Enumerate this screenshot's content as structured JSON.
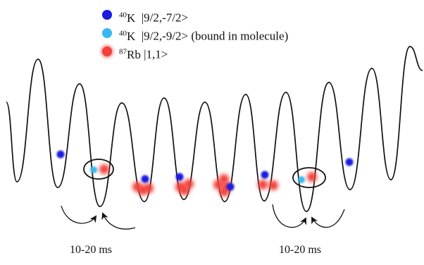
{
  "legend": {
    "items": [
      {
        "isotope": "40",
        "element": "K",
        "state": "|9/2,-7/2>",
        "note": "",
        "color": "#1a1ae0"
      },
      {
        "isotope": "40",
        "element": "K",
        "state": "|9/2,-9/2>",
        "note": "(bound in molecule)",
        "color": "#38b8ee"
      },
      {
        "isotope": "87",
        "element": "Rb",
        "state": "|1,1>",
        "note": "",
        "color": "#f2403a"
      }
    ]
  },
  "timing_labels": {
    "left": "10-20 ms",
    "right": "10-20 ms"
  },
  "colors": {
    "lattice": "#111111",
    "k_unbound": "#1a1ae0",
    "k_bound": "#38b8ee",
    "rb": "#f2403a"
  }
}
